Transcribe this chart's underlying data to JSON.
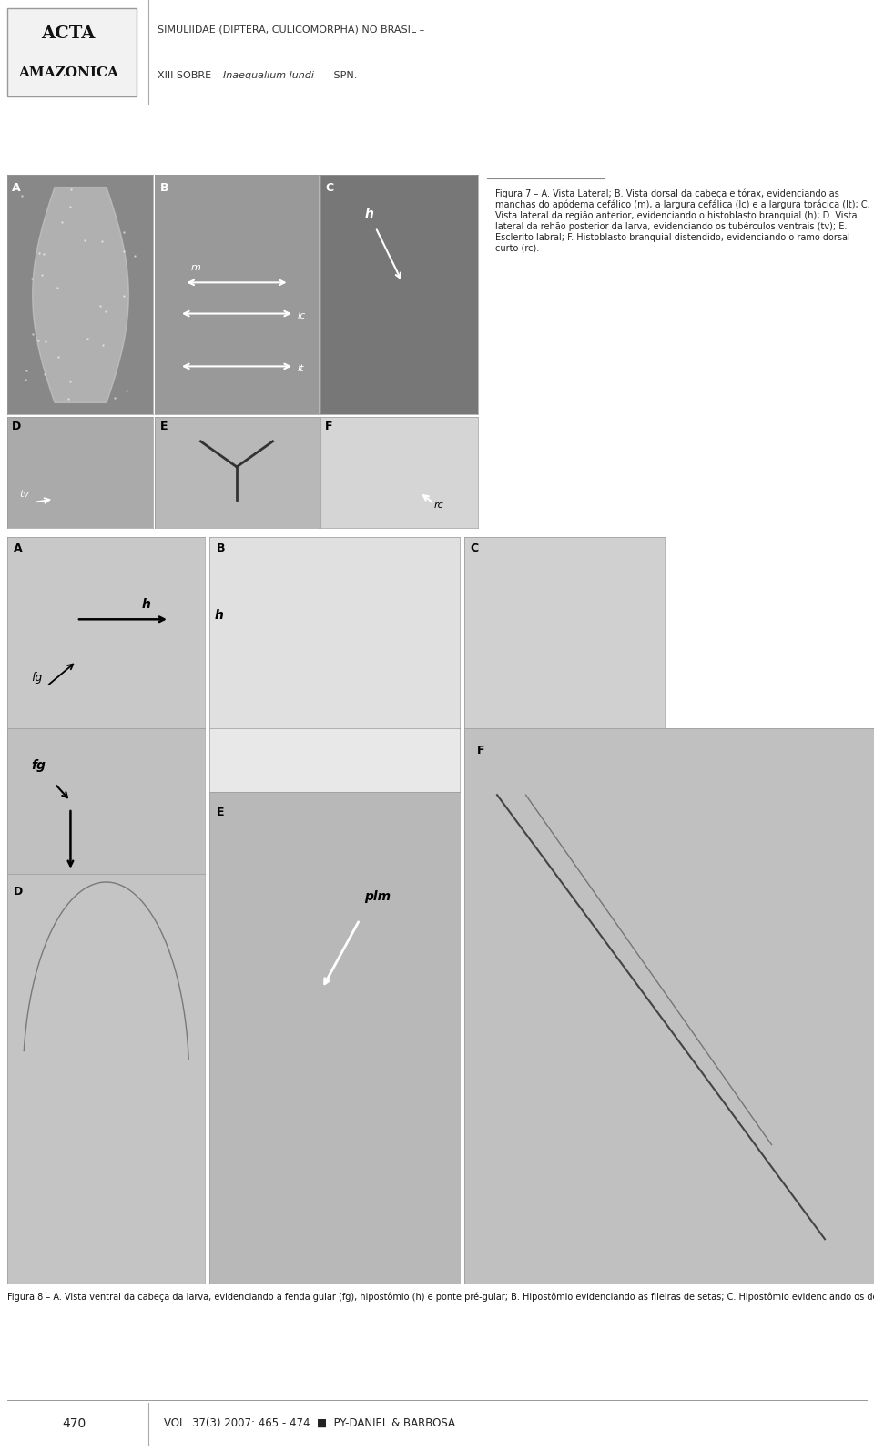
{
  "page_bg": "#ffffff",
  "logo_text_line1": "ACTA",
  "logo_text_line2": "AMAZONICA",
  "header_title_line1": "SIMULIIDAE (DIPTERA, CULICOMORPHA) NO BRASIL –",
  "header_title_line2_pre": "XIII SOBRE ",
  "header_title_italic": "Inaequalium lundi",
  "header_title_end": " SPN.",
  "fig7_caption_bold": "Figura 7 –",
  "fig7_caption_rest": " A. Vista Lateral; B. Vista dorsal da cabeça e tórax, evidenciando as manchas do apódema cefálico (m), a largura cefálica (lc) e a largura torácica (lt); C. Vista lateral da região anterior, evidenciando o histoblasto branquial (h); D. Vista lateral da rehão posterior da larva, evidenciando os tubérculos ventrais (tv); E. Esclerito labral; F. Histoblasto branquial distendido, evidenciando o ramo dorsal curto (rc).",
  "fig8_caption_bold": "Figura 8 –",
  "fig8_caption_rest": " A. Vista ventral da cabeça da larva, evidenciando a fenda gular (fg), hipostômio (h) e ponte pré-gular; B. Hipostômio evidenciando as fileiras de setas; C. Hipostômio evidenciando os dentes; D. Fenda Gular; E. Ápice da Mandíbula, evidenciando o Processo Latero-Mandibular (plm); F. Antena.",
  "footer_page": "470",
  "footer_text": "VOL. 37(3) 2007: 465 - 474  ■  PY-DANIEL & BARBOSA",
  "img_gray_dark": "#888888",
  "img_gray_mid": "#aaaaaa",
  "img_gray_light": "#cccccc",
  "img_gray_lighter": "#dddddd",
  "img_gray_darkest": "#666666"
}
